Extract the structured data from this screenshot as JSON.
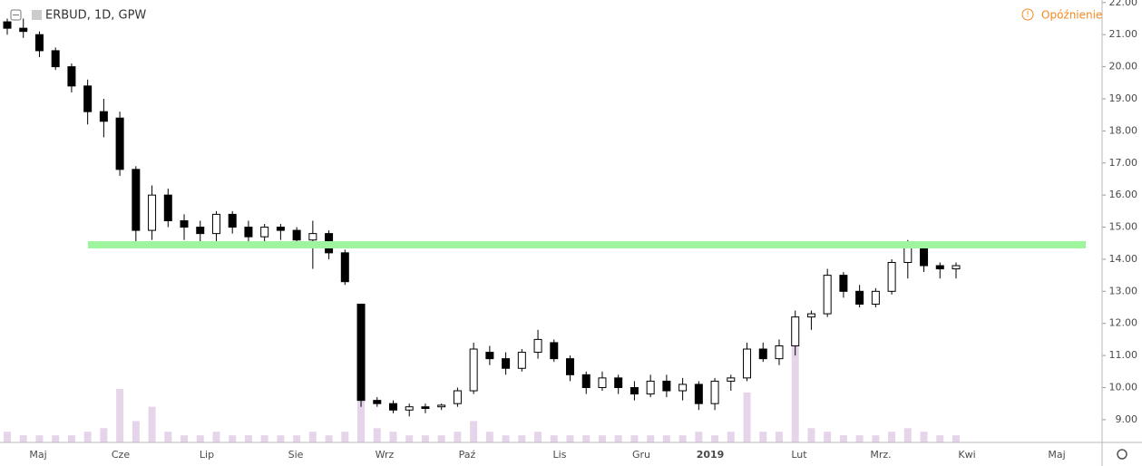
{
  "chart_data": {
    "type": "candlestick",
    "title": "ERBUD, 1D, GPW",
    "status": "Opóźnienie",
    "ylim": [
      8.29,
      22.08
    ],
    "yticks": [
      {
        "value": 9,
        "label": "9.00"
      },
      {
        "value": 10,
        "label": "10.00"
      },
      {
        "value": 11,
        "label": "11.00"
      },
      {
        "value": 12,
        "label": "12.00"
      },
      {
        "value": 13,
        "label": "13.00"
      },
      {
        "value": 14,
        "label": "14.00"
      },
      {
        "value": 15,
        "label": "15.00"
      },
      {
        "value": 16,
        "label": "16.00"
      },
      {
        "value": 17,
        "label": "17.00"
      },
      {
        "value": 18,
        "label": "18.00"
      },
      {
        "value": 19,
        "label": "19.00"
      },
      {
        "value": 20,
        "label": "20.00"
      },
      {
        "value": 21,
        "label": "21.00"
      },
      {
        "value": 22,
        "label": "22.00"
      }
    ],
    "x_labels": [
      "Maj",
      "Cze",
      "Lip",
      "Sie",
      "Wrz",
      "Paź",
      "Lis",
      "Gru",
      "2019",
      "Lut",
      "Mrz.",
      "Kwi",
      "Maj"
    ],
    "support_level": 14.45,
    "support_color": "#9ef59e",
    "up_color": "#ffffff",
    "down_color": "#000000",
    "volume_color": "#e6d5ea",
    "ohlc": [
      [
        21.4,
        21.5,
        21.0,
        21.2
      ],
      [
        21.2,
        21.5,
        20.9,
        21.1
      ],
      [
        21.0,
        21.1,
        20.3,
        20.5
      ],
      [
        20.5,
        20.6,
        19.9,
        20.0
      ],
      [
        20.0,
        20.1,
        19.2,
        19.4
      ],
      [
        19.4,
        19.6,
        18.2,
        18.6
      ],
      [
        18.6,
        19.0,
        17.8,
        18.3
      ],
      [
        18.4,
        18.6,
        16.6,
        16.8
      ],
      [
        16.8,
        16.9,
        14.5,
        14.9
      ],
      [
        14.9,
        16.3,
        14.6,
        16.0
      ],
      [
        16.0,
        16.2,
        15.0,
        15.2
      ],
      [
        15.2,
        15.4,
        14.6,
        15.0
      ],
      [
        15.0,
        15.2,
        14.4,
        14.8
      ],
      [
        14.8,
        15.5,
        14.5,
        15.4
      ],
      [
        15.4,
        15.5,
        14.8,
        15.0
      ],
      [
        15.0,
        15.2,
        14.4,
        14.7
      ],
      [
        14.7,
        15.1,
        14.5,
        15.0
      ],
      [
        15.0,
        15.1,
        14.6,
        14.9
      ],
      [
        14.9,
        15.0,
        14.4,
        14.6
      ],
      [
        14.6,
        15.2,
        13.7,
        14.8
      ],
      [
        14.8,
        14.9,
        14.0,
        14.2
      ],
      [
        14.2,
        14.3,
        13.2,
        13.3
      ],
      [
        12.6,
        12.6,
        9.4,
        9.6
      ],
      [
        9.6,
        9.7,
        9.4,
        9.5
      ],
      [
        9.5,
        9.6,
        9.2,
        9.3
      ],
      [
        9.3,
        9.5,
        9.1,
        9.4
      ],
      [
        9.4,
        9.5,
        9.2,
        9.35
      ],
      [
        9.4,
        9.5,
        9.3,
        9.45
      ],
      [
        9.5,
        10.0,
        9.4,
        9.9
      ],
      [
        9.9,
        11.4,
        9.8,
        11.2
      ],
      [
        11.1,
        11.3,
        10.7,
        10.9
      ],
      [
        10.9,
        11.1,
        10.4,
        10.6
      ],
      [
        10.6,
        11.2,
        10.5,
        11.1
      ],
      [
        11.1,
        11.8,
        10.9,
        11.5
      ],
      [
        11.4,
        11.5,
        10.8,
        10.9
      ],
      [
        10.9,
        11.0,
        10.2,
        10.4
      ],
      [
        10.4,
        10.5,
        9.8,
        10.0
      ],
      [
        10.0,
        10.5,
        9.9,
        10.3
      ],
      [
        10.3,
        10.4,
        9.8,
        10.0
      ],
      [
        10.0,
        10.2,
        9.6,
        9.8
      ],
      [
        9.8,
        10.4,
        9.7,
        10.2
      ],
      [
        10.2,
        10.4,
        9.7,
        9.9
      ],
      [
        9.9,
        10.3,
        9.6,
        10.1
      ],
      [
        10.1,
        10.2,
        9.3,
        9.5
      ],
      [
        9.5,
        10.3,
        9.3,
        10.2
      ],
      [
        10.2,
        10.4,
        9.9,
        10.3
      ],
      [
        10.3,
        11.4,
        10.2,
        11.2
      ],
      [
        11.2,
        11.4,
        10.8,
        10.9
      ],
      [
        10.9,
        11.5,
        10.7,
        11.3
      ],
      [
        11.3,
        12.4,
        11.0,
        12.2
      ],
      [
        12.2,
        12.4,
        11.8,
        12.3
      ],
      [
        12.3,
        13.7,
        12.2,
        13.5
      ],
      [
        13.5,
        13.6,
        12.8,
        13.0
      ],
      [
        13.0,
        13.2,
        12.5,
        12.6
      ],
      [
        12.6,
        13.1,
        12.5,
        13.0
      ],
      [
        13.0,
        14.0,
        12.9,
        13.9
      ],
      [
        13.9,
        14.6,
        13.4,
        14.4
      ],
      [
        14.4,
        14.5,
        13.6,
        13.8
      ],
      [
        13.8,
        13.9,
        13.4,
        13.7
      ],
      [
        13.7,
        13.9,
        13.4,
        13.8
      ]
    ],
    "volume": [
      3,
      2,
      2,
      2,
      2,
      3,
      4,
      15,
      6,
      10,
      3,
      2,
      2,
      3,
      2,
      2,
      2,
      2,
      2,
      3,
      2,
      3,
      12,
      4,
      3,
      2,
      2,
      2,
      3,
      6,
      3,
      2,
      2,
      3,
      2,
      2,
      2,
      2,
      2,
      2,
      2,
      2,
      2,
      3,
      2,
      3,
      14,
      3,
      3,
      30,
      4,
      3,
      2,
      2,
      2,
      3,
      4,
      3,
      2,
      2
    ]
  }
}
